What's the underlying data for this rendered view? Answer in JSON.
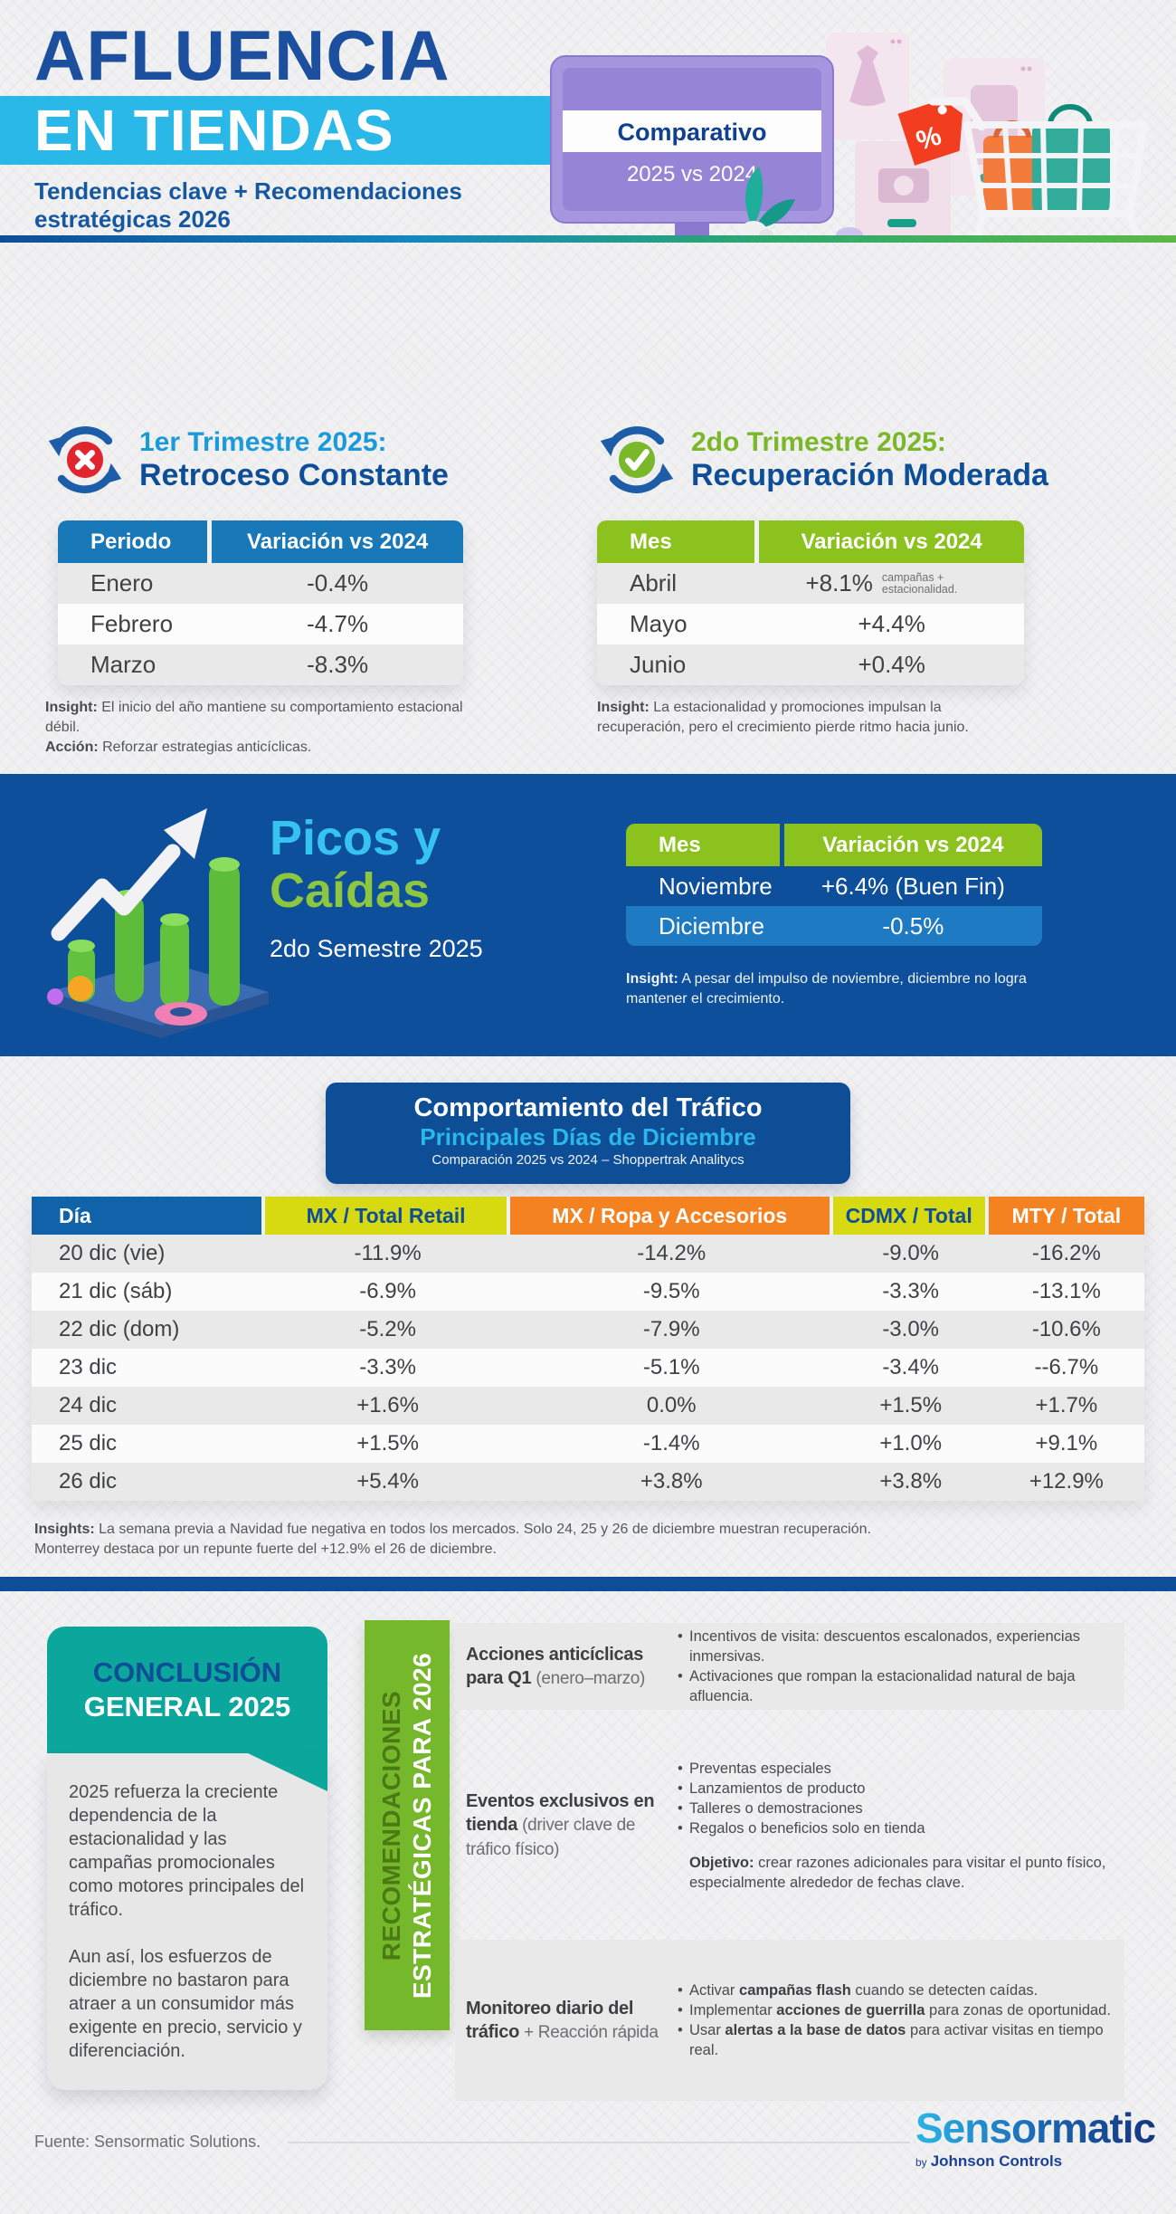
{
  "colors": {
    "dark_blue": "#0d4e96",
    "cyan": "#29b8e7",
    "green": "#7ab82a",
    "table_blue": "#1878b8",
    "table_green": "#8cc21d",
    "orange": "#f58220",
    "yellow_green": "#d7d911",
    "teal": "#0ba79d",
    "light_blue_row": "#1f7ac4"
  },
  "icons": {
    "q1_icon": "cycle-arrows-x-circle",
    "q2_icon": "cycle-arrows-check-circle",
    "picos_icon": "3d-bar-chart-up-arrow",
    "header_icon": "monitor-shopping-cart"
  },
  "header": {
    "title1": "AFLUENCIA",
    "title2": "EN TIENDAS",
    "subtitle": "Tendencias clave + Recomendaciones estratégicas 2026",
    "badge_title": "Comparativo",
    "badge_sub": "2025 vs 2024"
  },
  "q1": {
    "kicker": "1er Trimestre 2025:",
    "title": "Retroceso Constante",
    "table": {
      "headers": [
        "Periodo",
        "Variación vs 2024"
      ],
      "rows": [
        [
          "Enero",
          "-0.4%"
        ],
        [
          "Febrero",
          "-4.7%"
        ],
        [
          "Marzo",
          "-8.3%"
        ]
      ]
    },
    "insight_label": "Insight:",
    "insight": "El inicio del año mantiene su comportamiento estacional débil.",
    "action_label": "Acción:",
    "action": "Reforzar estrategias anticíclicas."
  },
  "q2": {
    "kicker": "2do Trimestre 2025:",
    "title": "Recuperación Moderada",
    "table": {
      "headers": [
        "Mes",
        "Variación vs 2024"
      ],
      "rows": [
        [
          "Abril",
          "+8.1%"
        ],
        [
          "Mayo",
          "+4.4%"
        ],
        [
          "Junio",
          "+0.4%"
        ]
      ],
      "note_row": 0,
      "note": "campañas + estacionalidad."
    },
    "insight_label": "Insight:",
    "insight": "La estacionalidad y promociones impulsan la recuperación, pero el crecimiento pierde ritmo hacia junio."
  },
  "picos": {
    "title1": "Picos y",
    "title2": "Caídas",
    "subtitle": "2do Semestre 2025",
    "table": {
      "headers": [
        "Mes",
        "Variación vs 2024"
      ],
      "rows": [
        [
          "Noviembre",
          "+6.4% (Buen Fin)"
        ],
        [
          "Diciembre",
          "-0.5%"
        ]
      ]
    },
    "insight_label": "Insight:",
    "insight": "A pesar del impulso de noviembre, diciembre no logra mantener el crecimiento."
  },
  "trafico": {
    "title": "Comportamiento del Tráfico",
    "subtitle": "Principales Días de Diciembre",
    "caption": "Comparación 2025 vs 2024 – Shoppertrak Analitycs",
    "headers": [
      "Día",
      "MX / Total Retail",
      "MX / Ropa y Accesorios",
      "CDMX / Total",
      "MTY / Total"
    ],
    "rows": [
      [
        "20 dic (vie)",
        "-11.9%",
        "-14.2%",
        "-9.0%",
        "-16.2%"
      ],
      [
        "21 dic (sáb)",
        "-6.9%",
        "-9.5%",
        "-3.3%",
        "-13.1%"
      ],
      [
        "22 dic (dom)",
        "-5.2%",
        "-7.9%",
        "-3.0%",
        "-10.6%"
      ],
      [
        "23 dic",
        "-3.3%",
        "-5.1%",
        "-3.4%",
        "--6.7%"
      ],
      [
        "24 dic",
        "+1.6%",
        "0.0%",
        "+1.5%",
        "+1.7%"
      ],
      [
        "25 dic",
        "+1.5%",
        "-1.4%",
        "+1.0%",
        "+9.1%"
      ],
      [
        "26 dic",
        "+5.4%",
        "+3.8%",
        "+3.8%",
        "+12.9%"
      ]
    ],
    "insights_label": "Insights:",
    "insights_line1": "La semana previa a Navidad fue negativa en todos los mercados. Solo 24, 25 y 26 de diciembre muestran recuperación.",
    "insights_line2": "Monterrey destaca por un repunte fuerte del +12.9% el 26 de diciembre."
  },
  "conclusion": {
    "title1": "CONCLUSIÓN",
    "title2": "GENERAL 2025",
    "p1": "2025 refuerza la creciente dependencia de la estacionalidad y las campañas promocionales como motores principales del tráfico.",
    "p2": "Aun así, los esfuerzos de diciembre no bastaron para atraer a un consumidor más exigente en precio, servicio y diferenciación."
  },
  "recs": {
    "band1": "RECOMENDACIONES",
    "band2": "ESTRATÉGICAS PARA 2026",
    "rows": [
      {
        "title": "Acciones anticíclicas para Q1",
        "note": " (enero–marzo)",
        "bullets": [
          [
            [
              "Incentivos de visita: descuentos escalonados, experiencias inmersivas.",
              0
            ]
          ],
          [
            [
              "Activaciones que rompan la estacionalidad natural de baja afluencia.",
              0
            ]
          ]
        ]
      },
      {
        "title": "Eventos exclusivos en tienda",
        "note": " (driver clave de tráfico físico)",
        "bullets": [
          [
            [
              "Preventas especiales",
              0
            ]
          ],
          [
            [
              "Lanzamientos de producto",
              0
            ]
          ],
          [
            [
              "Talleres o demostraciones",
              0
            ]
          ],
          [
            [
              "Regalos o beneficios solo en tienda",
              0
            ]
          ]
        ],
        "objetivo_label": "Objetivo:",
        "objetivo": " crear razones adicionales para visitar el punto físico, especialmente alrededor de fechas clave."
      },
      {
        "title": "Monitoreo diario del tráfico",
        "note": " + Reacción rápida",
        "bullets": [
          [
            [
              "Activar ",
              0
            ],
            [
              "campañas flash",
              1
            ],
            [
              " cuando se detecten caídas.",
              0
            ]
          ],
          [
            [
              "Implementar ",
              0
            ],
            [
              "acciones de guerrilla",
              1
            ],
            [
              " para zonas de oportunidad.",
              0
            ]
          ],
          [
            [
              "Usar ",
              0
            ],
            [
              "alertas a la base de datos",
              1
            ],
            [
              " para activar visitas en tiempo real.",
              0
            ]
          ]
        ]
      }
    ]
  },
  "footer": {
    "fuente": "Fuente: Sensormatic Solutions.",
    "logo": "Sensormatic",
    "by": "by",
    "company": "Johnson Controls"
  }
}
